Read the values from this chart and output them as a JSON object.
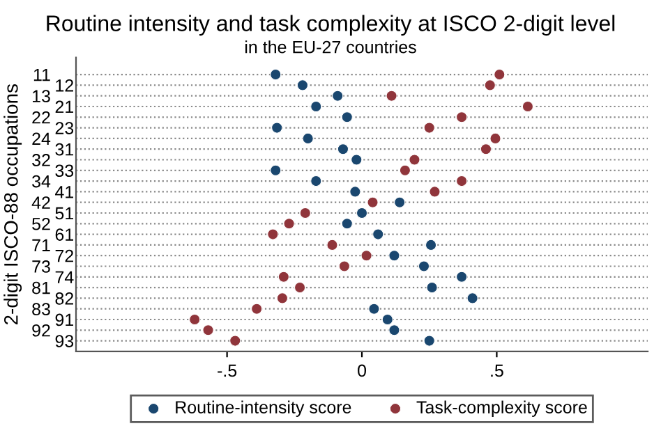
{
  "chart_data": {
    "type": "scatter",
    "title": "Routine intensity and task complexity at ISCO 2-digit level",
    "subtitle": "in the EU-27 countries",
    "ylabel": "2-digit ISCO-88 occupations",
    "categories": [
      "11",
      "12",
      "13",
      "21",
      "22",
      "23",
      "24",
      "31",
      "32",
      "33",
      "34",
      "41",
      "42",
      "51",
      "52",
      "61",
      "71",
      "72",
      "73",
      "74",
      "81",
      "82",
      "83",
      "91",
      "92",
      "93"
    ],
    "orientation": "horizontal",
    "series": [
      {
        "name": "Routine-intensity score",
        "color": "#1a476f",
        "values": [
          -0.32,
          -0.22,
          -0.09,
          -0.17,
          -0.055,
          -0.315,
          -0.2,
          -0.07,
          -0.02,
          -0.32,
          -0.17,
          -0.025,
          0.14,
          0.0,
          -0.055,
          0.06,
          0.256,
          0.12,
          0.23,
          0.37,
          0.26,
          0.41,
          0.045,
          0.095,
          0.12,
          0.25
        ]
      },
      {
        "name": "Task-complexity score",
        "color": "#90353b",
        "values": [
          0.51,
          0.475,
          0.11,
          0.615,
          0.37,
          0.25,
          0.495,
          0.46,
          0.195,
          0.16,
          0.37,
          0.27,
          0.04,
          -0.21,
          -0.27,
          -0.33,
          -0.11,
          0.017,
          -0.065,
          -0.29,
          -0.23,
          -0.295,
          -0.39,
          -0.62,
          -0.57,
          -0.47
        ]
      }
    ],
    "xlim": [
      -1.06,
      1.06
    ],
    "xticks": [
      {
        "value": -0.5,
        "label": "-.5"
      },
      0,
      {
        "value": 0.5,
        "label": ".5"
      }
    ],
    "grid": "y",
    "line_style": "dotted",
    "marker": "circle",
    "legend": "bottom"
  }
}
